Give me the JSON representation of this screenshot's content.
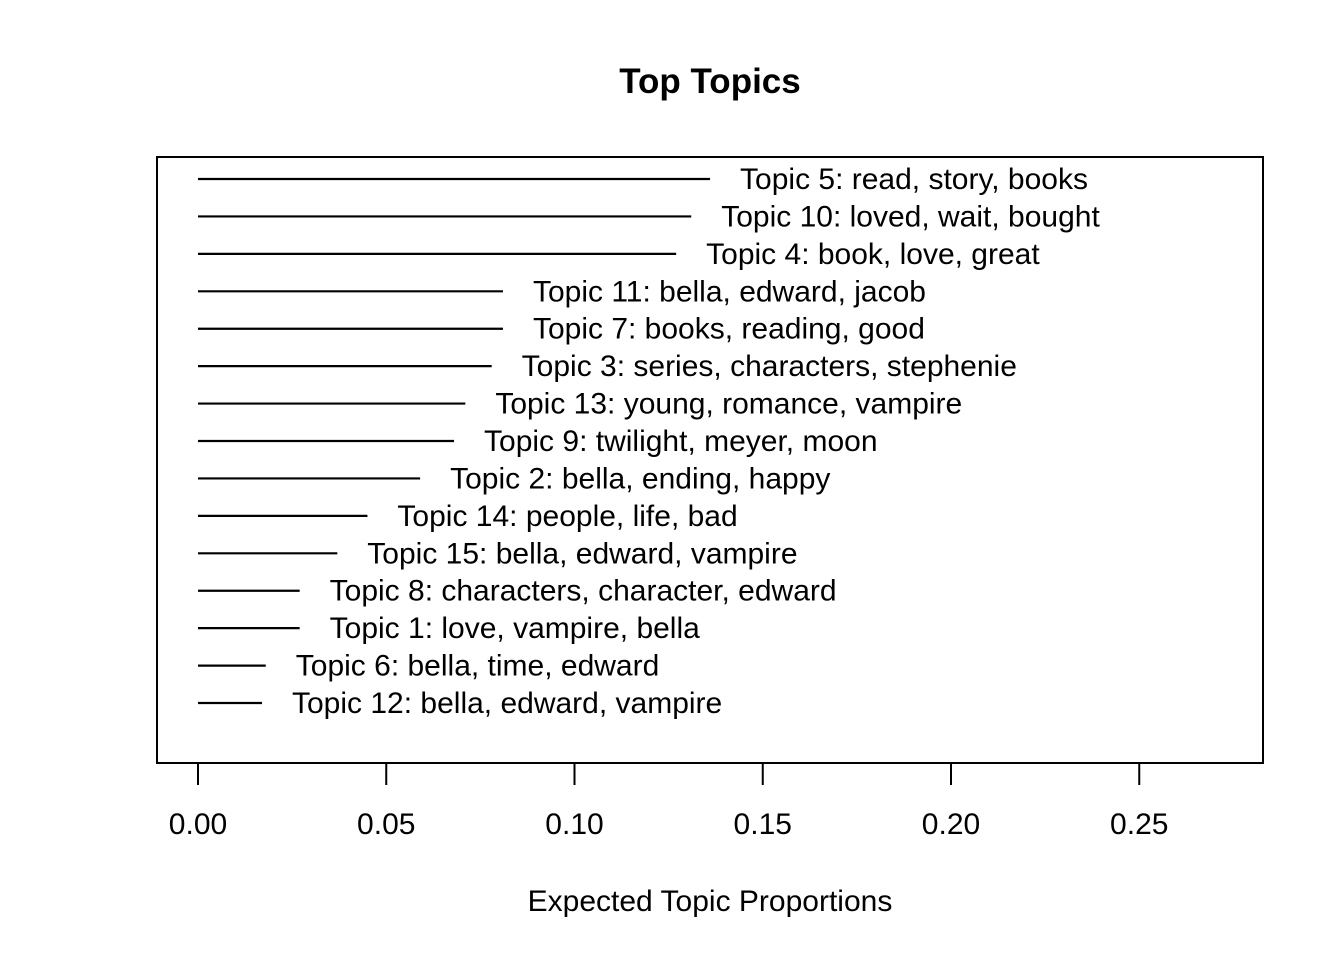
{
  "chart_data": {
    "type": "bar",
    "title": "Top Topics",
    "xlabel": "Expected Topic Proportions",
    "ylabel": "",
    "xlim": [
      0,
      0.28
    ],
    "xticks": [
      0.0,
      0.05,
      0.1,
      0.15,
      0.2,
      0.25
    ],
    "xtick_labels": [
      "0.00",
      "0.05",
      "0.10",
      "0.15",
      "0.20",
      "0.25"
    ],
    "grid": false,
    "orientation": "horizontal",
    "categories": [
      "Topic 5: read, story, books",
      "Topic 10: loved, wait, bought",
      "Topic 4: book, love, great",
      "Topic 11: bella, edward, jacob",
      "Topic 7: books, reading, good",
      "Topic 3: series, characters, stephenie",
      "Topic 13: young, romance, vampire",
      "Topic 9: twilight, meyer, moon",
      "Topic 2: bella, ending, happy",
      "Topic 14: people, life, bad",
      "Topic 15: bella, edward, vampire",
      "Topic 8: characters, character, edward",
      "Topic 1: love, vampire, bella",
      "Topic 6: bella, time, edward",
      "Topic 12: bella, edward, vampire"
    ],
    "values": [
      0.136,
      0.131,
      0.127,
      0.081,
      0.081,
      0.078,
      0.071,
      0.068,
      0.059,
      0.045,
      0.037,
      0.027,
      0.027,
      0.018,
      0.017
    ]
  }
}
